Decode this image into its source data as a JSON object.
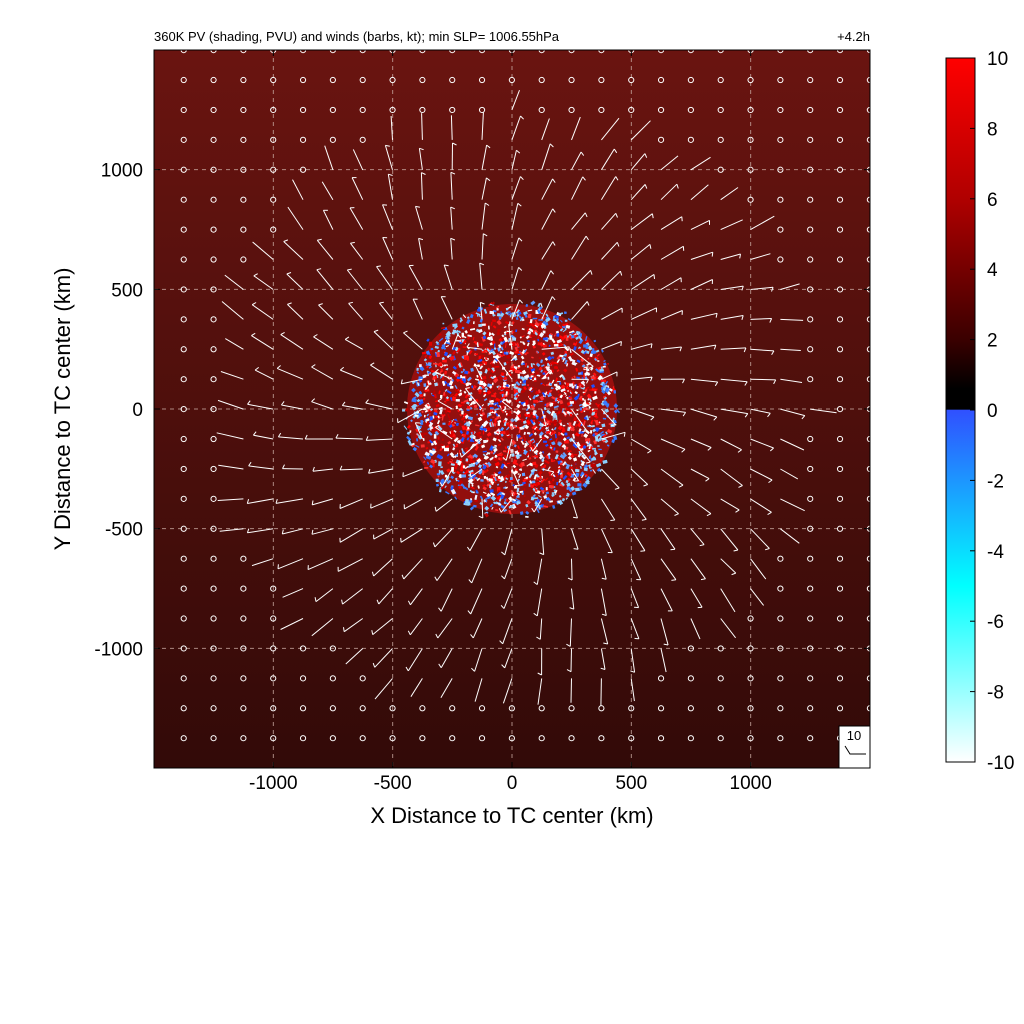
{
  "chart_data": {
    "type": "heatmap",
    "title": "360K PV (shading, PVU) and winds (barbs, kt); min SLP= 1006.55hPa",
    "time_label": "+4.2h",
    "xlabel": "X Distance to TC center (km)",
    "ylabel": "Y Distance to TC center (km)",
    "xlim": [
      -1500,
      1500
    ],
    "ylim": [
      -1500,
      1500
    ],
    "x_ticks": [
      -1000,
      -500,
      0,
      500,
      1000
    ],
    "y_ticks": [
      1000,
      500,
      0,
      -500,
      -1000
    ],
    "x_tick_labels": [
      "-1000",
      "-500",
      "0",
      "500",
      "1000"
    ],
    "y_tick_labels": [
      "1000",
      "500",
      "0",
      "-500",
      "-1000"
    ],
    "grid": true,
    "grid_style": "dashed",
    "colorbar": {
      "label_unit": "PVU",
      "range": [
        -10,
        10
      ],
      "tick_values": [
        10,
        8,
        6,
        4,
        2,
        0,
        -2,
        -4,
        -6,
        -8,
        -10
      ],
      "tick_labels": [
        "10",
        "8",
        "6",
        "4",
        "2",
        "0",
        "-2",
        "-4",
        "-6",
        "-8",
        "-10"
      ],
      "stops": [
        {
          "value": 10,
          "color": "#ff0000"
        },
        {
          "value": 6,
          "color": "#b00000"
        },
        {
          "value": 2,
          "color": "#3a0000"
        },
        {
          "value": 0.6,
          "color": "#000000"
        },
        {
          "value": 0,
          "color": "#3050ff"
        },
        {
          "value": -5,
          "color": "#00ffff"
        },
        {
          "value": -10,
          "color": "#ffffff"
        }
      ]
    },
    "background_field": {
      "description_value_pvu": 3.5,
      "color_top": "#6a1410",
      "color_bottom": "#320a08"
    },
    "core": {
      "center_km": [
        0,
        0
      ],
      "radius_km": 440
    },
    "wind": {
      "grid_spacing_km": 125,
      "calm_radius_km": 1250,
      "reference_barb_label": "10",
      "reference_barb_kt": 10
    }
  },
  "colors": {
    "barb": "#ffffff",
    "frame": "#000000",
    "grid_line": "#c8a8a0"
  }
}
